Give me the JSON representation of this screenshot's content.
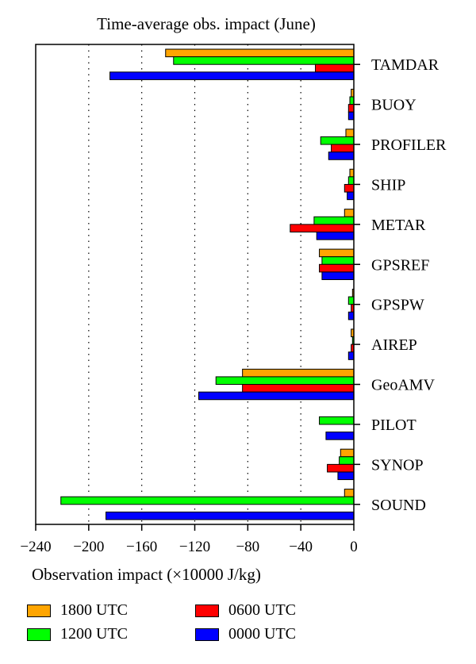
{
  "chart_data": {
    "type": "bar",
    "orientation": "horizontal",
    "title": "Time-average obs. impact (June)",
    "xlabel": "Observation impact (×10000 J/kg)",
    "xlim": [
      -240,
      0
    ],
    "xticks": [
      -240,
      -200,
      -160,
      -120,
      -80,
      -40,
      0
    ],
    "xtick_labels": [
      "−240",
      "−200",
      "−160",
      "−120",
      "−80",
      "−40",
      "0"
    ],
    "grid": "vertical dotted",
    "legend_position": "bottom",
    "categories": [
      "TAMDAR",
      "BUOY",
      "PROFILER",
      "SHIP",
      "METAR",
      "GPSREF",
      "GPSPW",
      "AIREP",
      "GeoAMV",
      "PILOT",
      "SYNOP",
      "SOUND"
    ],
    "series": [
      {
        "name": "1800 UTC",
        "color": "#ffa500",
        "values": [
          -142,
          -2,
          -6,
          -3,
          -7,
          -26,
          -1,
          -2,
          -84,
          0,
          -10,
          -7
        ]
      },
      {
        "name": "1200 UTC",
        "color": "#00ff00",
        "values": [
          -136,
          -3,
          -25,
          -4,
          -30,
          -24,
          -4,
          -1,
          -104,
          -26,
          -11,
          -221
        ]
      },
      {
        "name": "0600 UTC",
        "color": "#ff0000",
        "values": [
          -29,
          -4,
          -17,
          -7,
          -48,
          -26,
          -2,
          -2,
          -84,
          0,
          -20,
          0
        ]
      },
      {
        "name": "0000 UTC",
        "color": "#0000ff",
        "values": [
          -184,
          -4,
          -19,
          -5,
          -28,
          -24,
          -4,
          -4,
          -117,
          -21,
          -12,
          -187
        ]
      }
    ],
    "legend_order": [
      "1800 UTC",
      "0600 UTC",
      "1200 UTC",
      "0000 UTC"
    ]
  }
}
